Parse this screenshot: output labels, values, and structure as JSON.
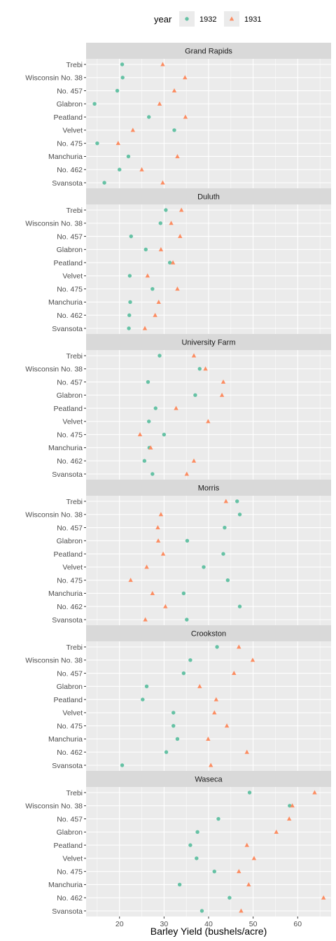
{
  "chart_data": {
    "type": "scatter",
    "xlabel": "Barley Yield (bushels/acre)",
    "ylabel": "",
    "xlim": [
      12.5,
      67.5
    ],
    "x_ticks": [
      20,
      30,
      40,
      50,
      60
    ],
    "grid": true,
    "legend": {
      "title": "year",
      "position": "top",
      "entries": [
        {
          "label": "1932",
          "shape": "circle",
          "color": "#66C2A5"
        },
        {
          "label": "1931",
          "shape": "triangle",
          "color": "#FC8D62"
        }
      ]
    },
    "categories": [
      "Trebi",
      "Wisconsin No. 38",
      "No. 457",
      "Glabron",
      "Peatland",
      "Velvet",
      "No. 475",
      "Manchuria",
      "No. 462",
      "Svansota"
    ],
    "panels": [
      {
        "site": "Grand Rapids",
        "y1932": [
          20.6,
          20.7,
          19.5,
          14.4,
          26.6,
          32.3,
          15.0,
          22.0,
          20.0,
          16.6
        ],
        "y1931": [
          29.7,
          34.7,
          32.3,
          29.0,
          34.8,
          23.0,
          19.7,
          33.0,
          25.0,
          29.7
        ]
      },
      {
        "site": "Duluth",
        "y1932": [
          30.4,
          29.2,
          22.6,
          25.9,
          31.3,
          22.3,
          27.4,
          22.4,
          22.2,
          22.1
        ],
        "y1931": [
          33.9,
          31.6,
          33.6,
          29.3,
          32.0,
          26.3,
          33.0,
          28.8,
          28.0,
          25.7
        ]
      },
      {
        "site": "University Farm",
        "y1932": [
          29.0,
          38.0,
          26.4,
          37.0,
          28.1,
          26.6,
          30.0,
          26.7,
          25.6,
          27.4
        ],
        "y1931": [
          36.7,
          39.3,
          43.3,
          43.0,
          32.7,
          39.9,
          24.6,
          27.0,
          36.7,
          35.1
        ]
      },
      {
        "site": "Morris",
        "y1932": [
          46.4,
          47.0,
          43.6,
          35.2,
          43.3,
          38.9,
          44.3,
          34.4,
          47.0,
          35.1
        ],
        "y1931": [
          43.9,
          29.3,
          28.6,
          28.7,
          29.8,
          26.1,
          22.5,
          27.4,
          30.3,
          25.8
        ]
      },
      {
        "site": "Crookston",
        "y1932": [
          41.9,
          35.9,
          34.4,
          26.1,
          25.2,
          32.1,
          32.1,
          33.0,
          30.5,
          20.6
        ],
        "y1931": [
          46.8,
          49.9,
          45.7,
          38.0,
          41.7,
          41.3,
          44.1,
          39.9,
          48.6,
          40.5
        ]
      },
      {
        "site": "Waseca",
        "y1932": [
          49.2,
          58.2,
          42.2,
          37.5,
          35.9,
          37.3,
          41.3,
          33.5,
          44.7,
          38.5
        ],
        "y1931": [
          63.8,
          58.8,
          58.1,
          55.2,
          48.6,
          50.2,
          46.8,
          49.0,
          65.8,
          47.3
        ]
      }
    ]
  }
}
